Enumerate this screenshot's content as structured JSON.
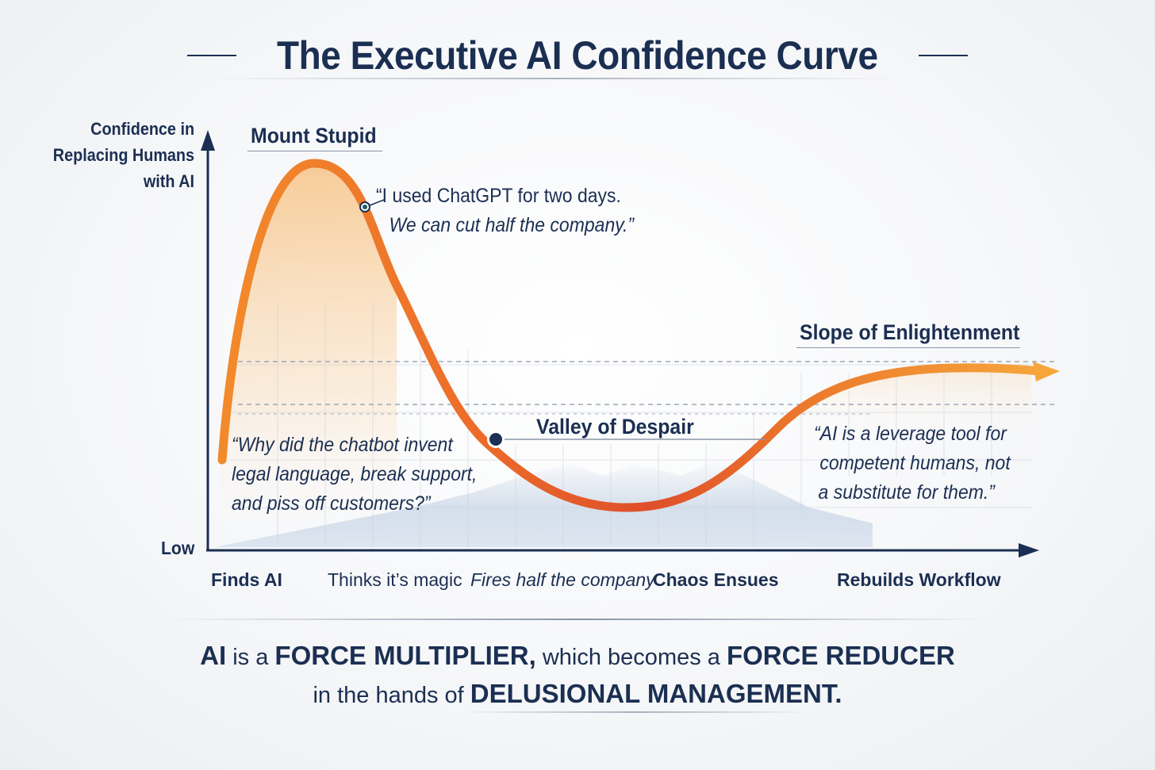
{
  "title": "The Executive AI Confidence Curve",
  "y_axis": {
    "label_lines": [
      "Confidence in",
      "Replacing Humans",
      "with AI"
    ],
    "low_label": "Low"
  },
  "x_axis": {
    "stages": [
      "Finds AI",
      "Thinks it’s magic",
      "Fires half the company",
      "Chaos Ensues",
      "Rebuilds Workflow"
    ]
  },
  "regions": {
    "peak": "Mount Stupid",
    "valley": "Valley of Despair",
    "slope": "Slope of Enlightenment"
  },
  "quotes": {
    "peak": [
      "“I used ChatGPT for two days.",
      "We can cut half the company.”"
    ],
    "chaos": [
      "“Why did the chatbot invent",
      "legal language, break support,",
      "and piss off customers?”"
    ],
    "slope": [
      "“AI is a leverage tool for",
      "competent humans, not",
      "a substitute for them.”"
    ]
  },
  "footer": {
    "line1": {
      "a": "AI",
      "b": " is a ",
      "c": "FORCE MULTIPLIER,",
      "d": " which becomes a ",
      "e": "FORCE REDUCER"
    },
    "line2": {
      "a": "in the hands of ",
      "b": "DELUSIONAL MANAGEMENT."
    }
  },
  "colors": {
    "navy": "#1b2f52",
    "curve_start": "#f2902b",
    "curve_mid": "#e05a2a",
    "curve_end": "#f39a34",
    "grid": "#9aa4b4"
  },
  "chart_data": {
    "type": "line",
    "title": "The Executive AI Confidence Curve",
    "ylabel": "Confidence in Replacing Humans with AI",
    "categories": [
      "Finds AI",
      "Thinks it’s magic",
      "Fires half the company",
      "Chaos Ensues",
      "Rebuilds Workflow"
    ],
    "y_scale_labels": [
      "Low"
    ],
    "curve": {
      "x": [
        0,
        0.5,
        1,
        1.5,
        2,
        2.5,
        3,
        3.5,
        4,
        4.4
      ],
      "y": [
        0.22,
        0.93,
        0.62,
        0.18,
        0.05,
        0.1,
        0.28,
        0.41,
        0.43,
        0.43
      ]
    },
    "annotations": [
      "Mount Stupid",
      "Valley of Despair",
      "Slope of Enlightenment"
    ]
  }
}
